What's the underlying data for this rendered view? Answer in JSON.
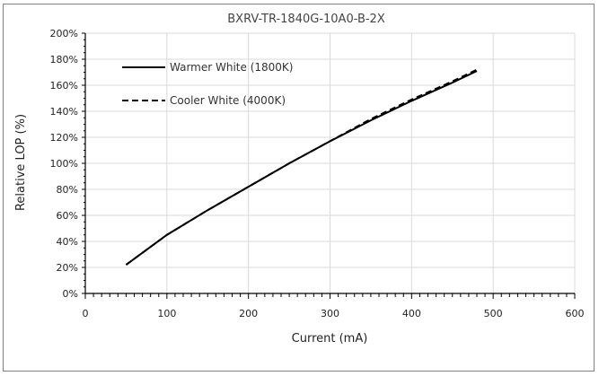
{
  "chart_data": {
    "type": "line",
    "title": "BXRV-TR-1840G-10A0-B-2X",
    "xlabel": "Current (mA)",
    "ylabel": "Relative LOP (%)",
    "xlim": [
      0,
      600
    ],
    "ylim": [
      0,
      200
    ],
    "x_ticks": [
      "0",
      "100",
      "200",
      "300",
      "400",
      "500",
      "600"
    ],
    "y_ticks": [
      "0%",
      "20%",
      "40%",
      "60%",
      "80%",
      "100%",
      "120%",
      "140%",
      "160%",
      "180%",
      "200%"
    ],
    "grid": true,
    "legend_position": "top-left",
    "series": [
      {
        "name": "Warmer White (1800K)",
        "style": "solid",
        "color": "#000000",
        "x": [
          50,
          100,
          150,
          200,
          250,
          300,
          350,
          400,
          450,
          480
        ],
        "y": [
          22,
          45,
          64,
          82,
          100,
          117,
          133,
          148,
          162,
          171
        ]
      },
      {
        "name": "Cooler White (4000K)",
        "style": "dashed",
        "color": "#000000",
        "x": [
          50,
          100,
          150,
          200,
          250,
          300,
          350,
          400,
          450,
          480
        ],
        "y": [
          22,
          45,
          64,
          82,
          100,
          117,
          134,
          149,
          163,
          172
        ]
      }
    ]
  }
}
